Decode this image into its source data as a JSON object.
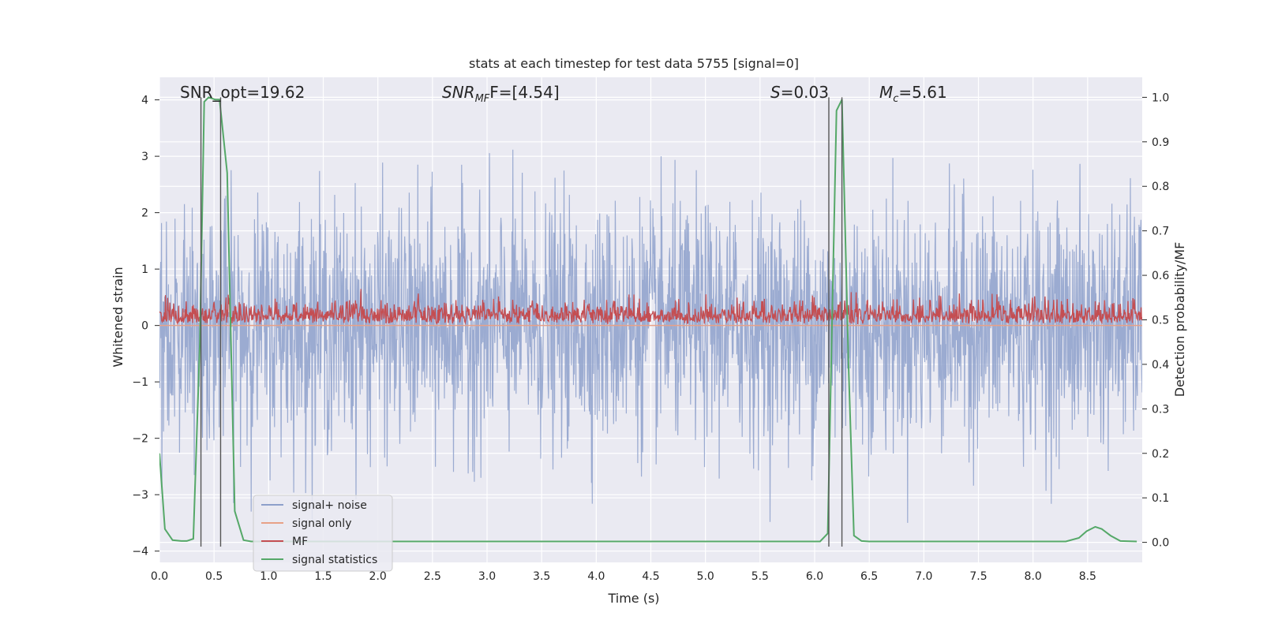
{
  "chart_data": {
    "type": "line",
    "title": "stats at each timestep for test data 5755 [signal=0]",
    "xlabel": "Time (s)",
    "ylabel_left": "Whitened strain",
    "ylabel_right": "Detection probability/MF",
    "xlim": [
      0.0,
      9.0
    ],
    "ylim_left": [
      -4.2,
      4.4
    ],
    "ylim_right": [
      -0.045,
      1.045
    ],
    "x_ticks": [
      "0.0",
      "0.5",
      "1.0",
      "1.5",
      "2.0",
      "2.5",
      "3.0",
      "3.5",
      "4.0",
      "4.5",
      "5.0",
      "5.5",
      "6.0",
      "6.5",
      "7.0",
      "7.5",
      "8.0",
      "8.5"
    ],
    "y_left_ticks": [
      "4",
      "3",
      "2",
      "1",
      "0",
      "−1",
      "−2",
      "−3",
      "−4"
    ],
    "y_right_ticks": [
      "1.0",
      "0.9",
      "0.8",
      "0.7",
      "0.6",
      "0.5",
      "0.4",
      "0.3",
      "0.2",
      "0.1",
      "0.0"
    ],
    "grid": true,
    "legend_position": "lower-left",
    "annotations": {
      "snr_opt": "SNR_opt=19.62",
      "snr_mf_label": "SNR",
      "snr_mf_sub": "MF",
      "snr_mf_value": "F=[4.54]",
      "s_label": "S",
      "s_value": "=0.03",
      "mc_label": "M",
      "mc_sub": "c",
      "mc_value": "=5.61"
    },
    "vertical_lines_x": [
      0.38,
      0.56,
      6.13,
      6.25
    ],
    "series": [
      {
        "name": "signal+ noise",
        "color": "#8da0cb",
        "axis": "left",
        "description_stats": {
          "mean": 0.0,
          "std": 1.0,
          "max": 4.0,
          "min": -3.5
        }
      },
      {
        "name": "signal only",
        "color": "#e8a187",
        "axis": "left",
        "x": [
          0.0,
          9.0
        ],
        "y": [
          0.0,
          0.0
        ]
      },
      {
        "name": "MF",
        "color": "#c44e52",
        "axis": "right",
        "description_stats": {
          "mean": 0.52,
          "min": 0.49,
          "max": 0.6
        }
      },
      {
        "name": "signal statistics",
        "color": "#55a868",
        "axis": "right",
        "x": [
          0.0,
          0.05,
          0.12,
          0.2,
          0.25,
          0.31,
          0.37,
          0.41,
          0.45,
          0.51,
          0.55,
          0.62,
          0.69,
          0.77,
          0.84,
          6.05,
          6.12,
          6.16,
          6.2,
          6.25,
          6.31,
          6.36,
          6.43,
          6.5,
          8.3,
          8.42,
          8.49,
          8.57,
          8.63,
          8.71,
          8.8,
          8.95
        ],
        "y": [
          0.2,
          0.03,
          0.005,
          0.003,
          0.003,
          0.008,
          0.45,
          0.99,
          1.0,
          0.995,
          0.995,
          0.83,
          0.07,
          0.005,
          0.002,
          0.002,
          0.02,
          0.5,
          0.97,
          0.995,
          0.4,
          0.015,
          0.003,
          0.002,
          0.002,
          0.01,
          0.025,
          0.035,
          0.03,
          0.015,
          0.003,
          0.002
        ]
      }
    ]
  }
}
